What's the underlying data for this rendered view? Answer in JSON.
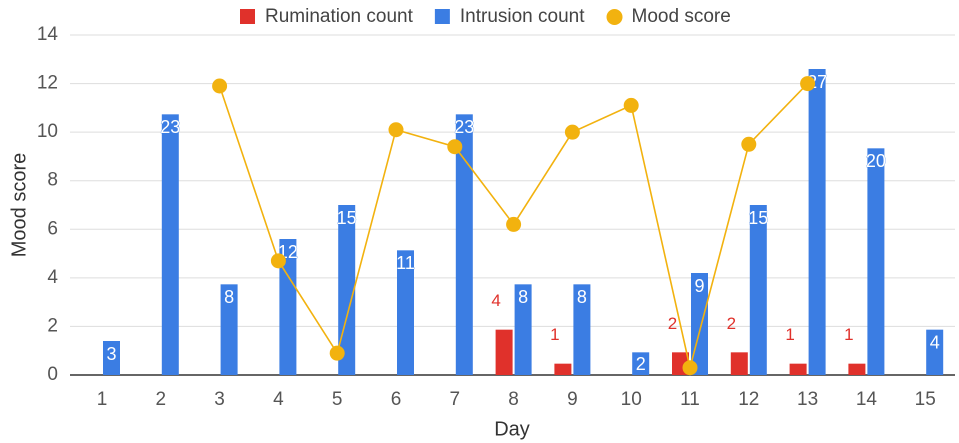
{
  "chart_data": {
    "type": "combo",
    "x_label": "Day",
    "y_label": "Mood score",
    "categories": [
      "1",
      "2",
      "3",
      "4",
      "5",
      "6",
      "7",
      "8",
      "9",
      "10",
      "11",
      "12",
      "13",
      "14",
      "15"
    ],
    "series": [
      {
        "name": "Rumination count",
        "type": "bar",
        "axis": "y2",
        "color": "#e0312b",
        "values": [
          null,
          null,
          null,
          null,
          null,
          null,
          null,
          4,
          1,
          null,
          2,
          2,
          1,
          1,
          null
        ]
      },
      {
        "name": "Intrusion count",
        "type": "bar",
        "axis": "y2",
        "color": "#3b7de3",
        "values": [
          3,
          23,
          8,
          12,
          15,
          11,
          23,
          8,
          8,
          2,
          9,
          15,
          27,
          20,
          4
        ]
      },
      {
        "name": "Mood score",
        "type": "line",
        "color": "#f2b20f",
        "values": [
          null,
          null,
          11.9,
          4.7,
          0.9,
          10.1,
          9.4,
          6.2,
          10.0,
          11.1,
          0.3,
          9.5,
          12.0,
          null,
          null
        ]
      }
    ],
    "ylim": [
      0,
      14
    ],
    "yticks": [
      0,
      2,
      4,
      6,
      8,
      10,
      12,
      14
    ],
    "y2lim": [
      0,
      30
    ],
    "grid": true,
    "legend": "top"
  }
}
